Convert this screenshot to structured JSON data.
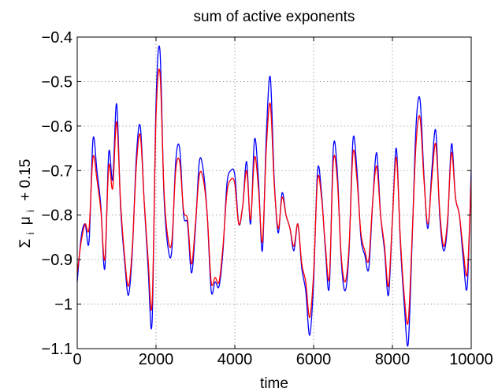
{
  "chart_data": {
    "type": "line",
    "title": "sum of active exponents",
    "xlabel": "time",
    "ylabel_parts": {
      "sigma": "Σ",
      "sub1": "i",
      "mu": "μ",
      "sub2": "i",
      "rest": "+ 0.15"
    },
    "xlim": [
      0,
      10000
    ],
    "ylim": [
      -1.1,
      -0.4
    ],
    "xticks": [
      0,
      2000,
      4000,
      6000,
      8000,
      10000
    ],
    "xtick_labels": [
      "0",
      "2000",
      "4000",
      "6000",
      "8000",
      "10000"
    ],
    "yticks": [
      -1.1,
      -1.0,
      -0.9,
      -0.8,
      -0.7,
      -0.6,
      -0.5,
      -0.4
    ],
    "ytick_labels": [
      "−1.1",
      "−1",
      "−0.9",
      "−0.8",
      "−0.7",
      "−0.6",
      "−0.5",
      "−0.4"
    ],
    "grid": true,
    "series": [
      {
        "color": "#0000ff",
        "x": [
          0,
          100,
          200,
          300,
          400,
          500,
          600,
          700,
          800,
          900,
          1000,
          1100,
          1200,
          1300,
          1400,
          1500,
          1600,
          1700,
          1800,
          1900,
          2000,
          2100,
          2200,
          2300,
          2400,
          2500,
          2600,
          2700,
          2800,
          2900,
          3000,
          3100,
          3200,
          3300,
          3400,
          3500,
          3600,
          3700,
          3800,
          3900,
          4000,
          4100,
          4200,
          4300,
          4400,
          4500,
          4600,
          4700,
          4800,
          4900,
          5000,
          5100,
          5200,
          5300,
          5400,
          5500,
          5600,
          5700,
          5800,
          5900,
          6000,
          6100,
          6200,
          6300,
          6400,
          6500,
          6600,
          6700,
          6800,
          6900,
          7000,
          7100,
          7200,
          7300,
          7400,
          7500,
          7600,
          7700,
          7800,
          7900,
          8000,
          8100,
          8200,
          8300,
          8400,
          8500,
          8600,
          8700,
          8800,
          8900,
          9000,
          9100,
          9200,
          9300,
          9400,
          9500,
          9600,
          9700,
          9800,
          9900,
          10000
        ],
        "values": [
          -0.95,
          -0.85,
          -0.82,
          -0.86,
          -0.63,
          -0.7,
          -0.78,
          -0.92,
          -0.66,
          -0.72,
          -0.55,
          -0.78,
          -0.9,
          -0.98,
          -0.88,
          -0.67,
          -0.6,
          -0.77,
          -0.92,
          -1.04,
          -0.55,
          -0.43,
          -0.75,
          -0.87,
          -0.88,
          -0.68,
          -0.65,
          -0.8,
          -0.82,
          -0.93,
          -0.83,
          -0.68,
          -0.7,
          -0.8,
          -0.97,
          -0.95,
          -0.96,
          -0.88,
          -0.73,
          -0.7,
          -0.71,
          -0.82,
          -0.78,
          -0.68,
          -0.82,
          -0.63,
          -0.72,
          -0.88,
          -0.62,
          -0.49,
          -0.72,
          -0.84,
          -0.75,
          -0.8,
          -0.83,
          -0.88,
          -0.82,
          -0.92,
          -0.97,
          -1.07,
          -0.95,
          -0.7,
          -0.75,
          -0.88,
          -0.96,
          -0.65,
          -0.7,
          -0.9,
          -0.97,
          -0.88,
          -0.63,
          -0.7,
          -0.85,
          -0.89,
          -0.92,
          -0.77,
          -0.66,
          -0.8,
          -0.88,
          -0.98,
          -0.81,
          -0.65,
          -0.86,
          -1.0,
          -1.09,
          -0.86,
          -0.6,
          -0.54,
          -0.71,
          -0.83,
          -0.7,
          -0.61,
          -0.8,
          -0.88,
          -0.82,
          -0.64,
          -0.76,
          -0.8,
          -0.9,
          -0.96,
          -0.7
        ]
      },
      {
        "color": "#ff0000",
        "x": [
          0,
          100,
          200,
          300,
          400,
          500,
          600,
          700,
          800,
          900,
          1000,
          1100,
          1200,
          1300,
          1400,
          1500,
          1600,
          1700,
          1800,
          1900,
          2000,
          2100,
          2200,
          2300,
          2400,
          2500,
          2600,
          2700,
          2800,
          2900,
          3000,
          3100,
          3200,
          3300,
          3400,
          3500,
          3600,
          3700,
          3800,
          3900,
          4000,
          4100,
          4200,
          4300,
          4400,
          4500,
          4600,
          4700,
          4800,
          4900,
          5000,
          5100,
          5200,
          5300,
          5400,
          5500,
          5600,
          5700,
          5800,
          5900,
          6000,
          6100,
          6200,
          6300,
          6400,
          6500,
          6600,
          6700,
          6800,
          6900,
          7000,
          7100,
          7200,
          7300,
          7400,
          7500,
          7600,
          7700,
          7800,
          7900,
          8000,
          8100,
          8200,
          8300,
          8400,
          8500,
          8600,
          8700,
          8800,
          8900,
          9000,
          9100,
          9200,
          9300,
          9400,
          9500,
          9600,
          9700,
          9800,
          9900,
          10000
        ],
        "values": [
          -0.93,
          -0.86,
          -0.82,
          -0.83,
          -0.67,
          -0.72,
          -0.79,
          -0.9,
          -0.69,
          -0.74,
          -0.59,
          -0.77,
          -0.89,
          -0.96,
          -0.87,
          -0.69,
          -0.62,
          -0.77,
          -0.9,
          -1.0,
          -0.58,
          -0.48,
          -0.74,
          -0.85,
          -0.86,
          -0.7,
          -0.68,
          -0.79,
          -0.81,
          -0.91,
          -0.82,
          -0.71,
          -0.72,
          -0.8,
          -0.95,
          -0.94,
          -0.95,
          -0.87,
          -0.75,
          -0.72,
          -0.73,
          -0.82,
          -0.78,
          -0.7,
          -0.81,
          -0.67,
          -0.74,
          -0.86,
          -0.65,
          -0.55,
          -0.73,
          -0.83,
          -0.76,
          -0.8,
          -0.83,
          -0.87,
          -0.82,
          -0.91,
          -0.95,
          -1.03,
          -0.93,
          -0.72,
          -0.76,
          -0.87,
          -0.94,
          -0.68,
          -0.72,
          -0.89,
          -0.95,
          -0.87,
          -0.66,
          -0.72,
          -0.84,
          -0.88,
          -0.9,
          -0.77,
          -0.69,
          -0.8,
          -0.87,
          -0.96,
          -0.81,
          -0.67,
          -0.85,
          -0.98,
          -1.04,
          -0.85,
          -0.64,
          -0.58,
          -0.72,
          -0.82,
          -0.72,
          -0.64,
          -0.79,
          -0.87,
          -0.81,
          -0.66,
          -0.76,
          -0.8,
          -0.88,
          -0.93,
          -0.72
        ]
      }
    ]
  }
}
